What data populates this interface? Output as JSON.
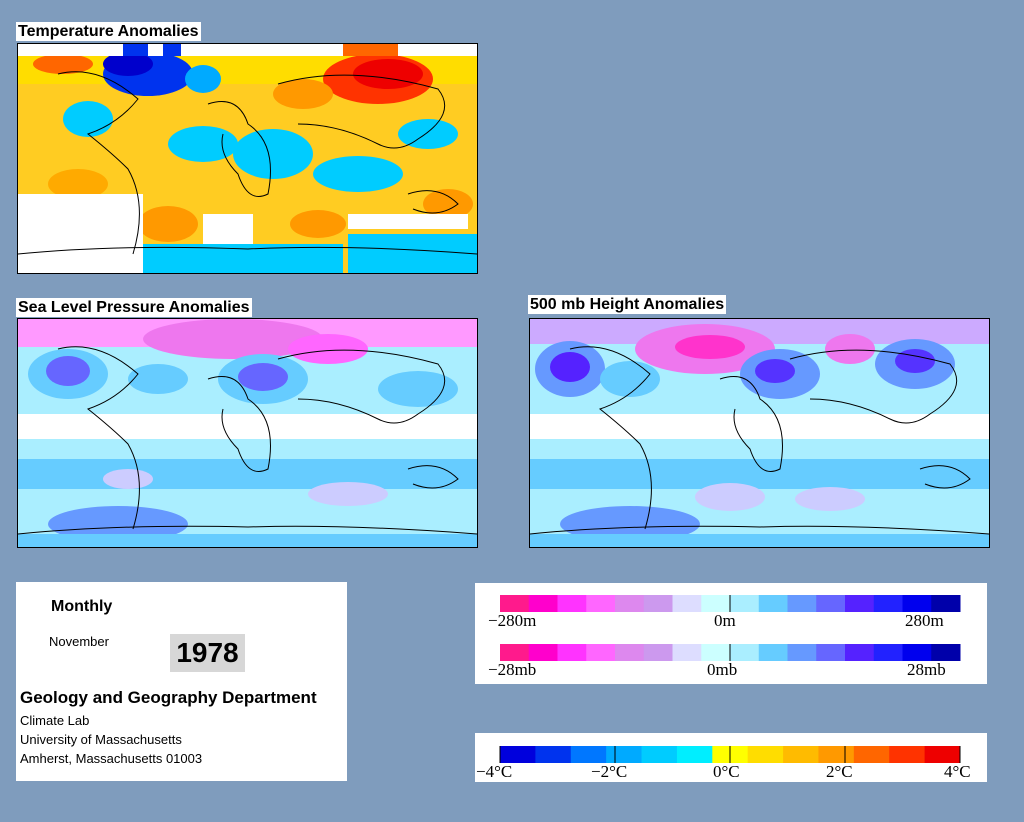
{
  "panels": {
    "temperature": {
      "title": "Temperature Anomalies"
    },
    "slp": {
      "title": "Sea Level Pressure Anomalies"
    },
    "height": {
      "title": "500 mb Height Anomalies"
    }
  },
  "info": {
    "period": "Monthly",
    "month": "November",
    "year": "1978",
    "department": "Geology and Geography Department",
    "lab": "Climate Lab",
    "university": "University of Massachusetts",
    "address": "Amherst, Massachusetts 01003"
  },
  "legends": {
    "height": {
      "min": "−280m",
      "mid": "0m",
      "max": "280m"
    },
    "pressure": {
      "min": "−28mb",
      "mid": "0mb",
      "max": "28mb"
    },
    "temperature": {
      "t1": "−4°C",
      "t2": "−2°C",
      "t3": "0°C",
      "t4": "2°C",
      "t5": "4°C"
    }
  },
  "colors": {
    "background": "#7f9cbd",
    "magenta_scale": [
      "#ff1a8c",
      "#ff00cc",
      "#ff33ff",
      "#ff66ff",
      "#dd88ee",
      "#cc99ee",
      "#ddddff",
      "#ccffff",
      "#aaeeff",
      "#66ccff",
      "#6699ff",
      "#6666ff",
      "#5522ff",
      "#2222ff",
      "#0000ee",
      "#0000aa"
    ],
    "temp_scale": [
      "#0000dd",
      "#0033ee",
      "#0077ff",
      "#00aaff",
      "#00ccff",
      "#00eeff",
      "#ffff00",
      "#ffdd00",
      "#ffbb00",
      "#ff9900",
      "#ff6600",
      "#ff3300",
      "#ee0000"
    ]
  }
}
